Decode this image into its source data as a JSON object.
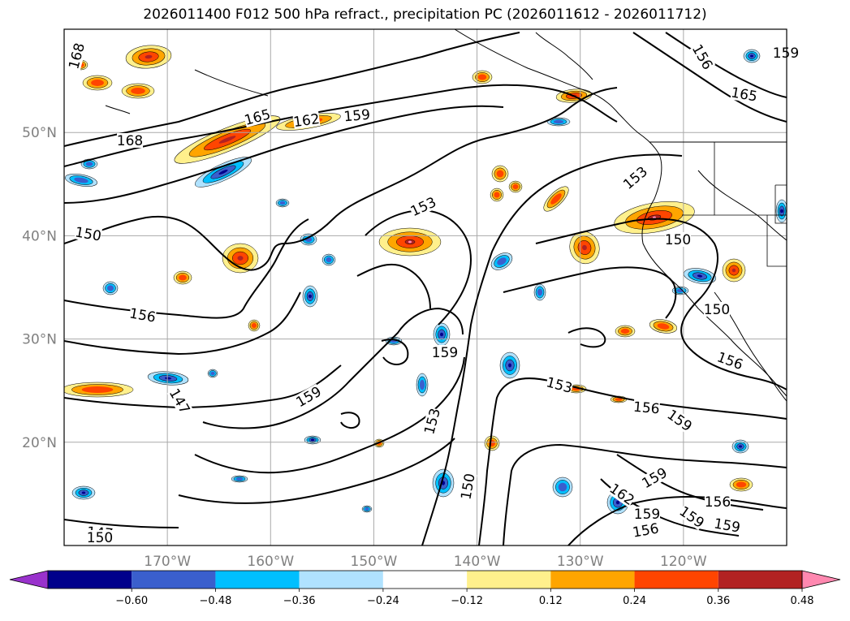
{
  "title": "2026011400 F012 500 hPa refract., precipitation PC (2026011612 - 2026011712)",
  "chart_data": {
    "type": "contour",
    "title": "2026011400 F012 500 hPa refract., precipitation PC (2026011612 - 2026011712)",
    "lon_ticks": [
      {
        "value": -170,
        "label": "170°W"
      },
      {
        "value": -160,
        "label": "160°W"
      },
      {
        "value": -150,
        "label": "150°W"
      },
      {
        "value": -140,
        "label": "140°W"
      },
      {
        "value": -130,
        "label": "130°W"
      },
      {
        "value": -120,
        "label": "120°W"
      }
    ],
    "lat_ticks": [
      {
        "value": 20,
        "label": "20°N"
      },
      {
        "value": 30,
        "label": "30°N"
      },
      {
        "value": 40,
        "label": "40°N"
      },
      {
        "value": 50,
        "label": "50°N"
      }
    ],
    "lon_range": [
      -180,
      -110
    ],
    "lat_range": [
      10,
      60
    ],
    "grid": true,
    "contour_labels": [
      "168",
      "168",
      "165",
      "162",
      "159",
      "159",
      "156",
      "165",
      "153",
      "150",
      "153",
      "150",
      "156",
      "150",
      "156",
      "147",
      "159",
      "159",
      "153",
      "153",
      "156",
      "159",
      "150",
      "159",
      "162",
      "159",
      "159",
      "156",
      "159",
      "156",
      "147",
      "150"
    ],
    "colorbar": {
      "extend": "both",
      "levels": [
        -0.72,
        -0.6,
        -0.48,
        -0.36,
        -0.24,
        -0.12,
        0.12,
        0.24,
        0.36,
        0.48,
        0.6,
        0.72
      ],
      "tick_labels": [
        "−0.60",
        "−0.48",
        "−0.36",
        "−0.24",
        "−0.12",
        "0.12",
        "0.24",
        "0.36",
        "0.48",
        "0.60"
      ],
      "colors": [
        "#9932cc",
        "#00008b",
        "#3a5fcd",
        "#00bfff",
        "#b0e2ff",
        "#ffffff",
        "#fff08c",
        "#ffa500",
        "#ff4500",
        "#b22222",
        "#ff88b0"
      ]
    },
    "colors": {
      "contour": "#000000",
      "coastline": "#000000",
      "gridline": "#a9a9a9"
    }
  }
}
